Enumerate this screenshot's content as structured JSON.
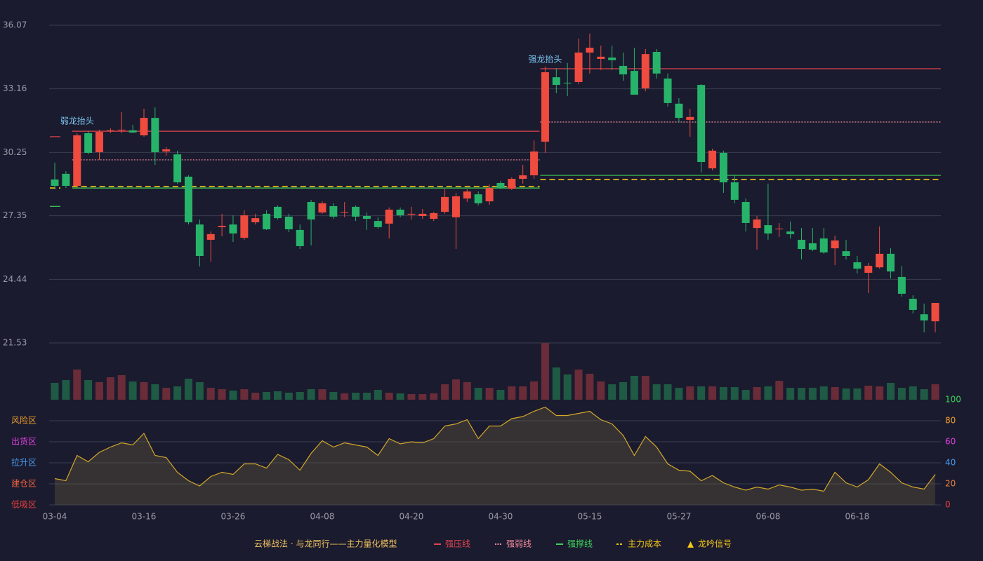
{
  "chart_data": {
    "type": "candlestick",
    "categories": [
      "03-04",
      null,
      null,
      null,
      null,
      null,
      null,
      null,
      "03-16",
      null,
      null,
      null,
      null,
      null,
      null,
      null,
      "03-26",
      null,
      null,
      null,
      null,
      null,
      null,
      null,
      "04-08",
      null,
      null,
      null,
      null,
      null,
      null,
      null,
      "04-20",
      null,
      null,
      null,
      null,
      null,
      null,
      null,
      "04-30",
      null,
      null,
      null,
      null,
      null,
      null,
      null,
      "05-15",
      null,
      null,
      null,
      null,
      null,
      null,
      null,
      "05-27",
      null,
      null,
      null,
      null,
      null,
      null,
      null,
      "06-08",
      null,
      null,
      null,
      null,
      null,
      null,
      null,
      "06-18",
      null,
      null,
      null,
      null,
      null,
      null,
      null
    ],
    "open": [
      29.01,
      29.27,
      28.72,
      31.13,
      30.26,
      31.22,
      31.26,
      31.26,
      31.03,
      31.83,
      30.29,
      30.16,
      29.14,
      26.95,
      26.25,
      26.83,
      26.95,
      26.34,
      27.05,
      27.44,
      27.76,
      27.31,
      26.7,
      27.98,
      27.5,
      27.79,
      27.5,
      27.76,
      27.34,
      27.11,
      26.99,
      27.63,
      27.4,
      27.34,
      27.21,
      27.53,
      27.28,
      28.14,
      28.33,
      28.01,
      28.85,
      28.59,
      29.04,
      29.2,
      30.74,
      33.69,
      33.44,
      33.47,
      34.82,
      34.53,
      34.59,
      34.21,
      33.98,
      33.18,
      34.85,
      33.63,
      32.48,
      31.74,
      33.34,
      29.52,
      30.23,
      28.88,
      27.98,
      26.79,
      26.92,
      26.73,
      26.63,
      26.25,
      26.09,
      26.31,
      25.86,
      25.73,
      25.22,
      24.74,
      24.99,
      25.61,
      24.55,
      23.55,
      22.84,
      22.52
    ],
    "high": [
      29.78,
      29.39,
      31.13,
      31.22,
      31.29,
      31.35,
      32.09,
      31.51,
      32.25,
      32.31,
      30.49,
      30.33,
      29.2,
      27.17,
      26.63,
      27.44,
      27.37,
      27.6,
      27.44,
      27.6,
      27.82,
      27.44,
      26.95,
      28.08,
      28.01,
      27.92,
      27.98,
      27.82,
      27.5,
      27.28,
      27.73,
      27.73,
      27.76,
      27.66,
      27.53,
      28.56,
      28.4,
      28.56,
      28.46,
      28.78,
      28.94,
      29.11,
      29.68,
      30.8,
      34.18,
      34.11,
      34.34,
      35.46,
      35.69,
      35.14,
      35.14,
      34.82,
      35.04,
      34.98,
      34.98,
      33.86,
      32.73,
      32.25,
      33.37,
      30.42,
      30.33,
      29.23,
      28.14,
      27.34,
      28.82,
      27.02,
      27.08,
      26.79,
      26.79,
      26.79,
      26.44,
      26.25,
      25.51,
      25.19,
      26.86,
      25.86,
      25.06,
      23.71,
      23.33,
      23.36
    ],
    "low": [
      28.56,
      28.62,
      28.62,
      30.16,
      29.91,
      31.13,
      31.13,
      31.13,
      30.97,
      29.68,
      30.1,
      28.82,
      26.95,
      25.03,
      25.25,
      26.41,
      26.15,
      26.25,
      26.95,
      26.7,
      27.18,
      26.6,
      25.83,
      25.99,
      27.44,
      27.21,
      27.28,
      27.11,
      26.7,
      26.76,
      26.31,
      27.28,
      27.18,
      27.21,
      27.11,
      27.44,
      25.83,
      27.98,
      27.82,
      27.85,
      28.56,
      28.53,
      28.82,
      29.04,
      30.23,
      32.96,
      32.83,
      33.37,
      33.86,
      34.02,
      34.02,
      33.53,
      32.89,
      33.05,
      33.63,
      32.35,
      31.61,
      30.97,
      29.33,
      29.43,
      28.4,
      27.92,
      26.63,
      25.8,
      26.25,
      26.38,
      26.31,
      25.35,
      25.73,
      25.61,
      25.09,
      25.35,
      24.71,
      23.81,
      24.93,
      24.48,
      23.65,
      22.88,
      22.01,
      22.01
    ],
    "close": [
      28.72,
      28.72,
      31.03,
      30.23,
      31.19,
      31.26,
      31.29,
      31.16,
      31.83,
      30.26,
      30.39,
      28.88,
      27.05,
      25.51,
      26.51,
      26.89,
      26.54,
      27.37,
      27.24,
      26.73,
      27.24,
      26.73,
      25.96,
      27.18,
      27.92,
      27.31,
      27.53,
      27.31,
      27.21,
      26.83,
      27.63,
      27.37,
      27.44,
      27.44,
      27.47,
      28.21,
      28.24,
      28.46,
      27.92,
      28.62,
      28.62,
      29.04,
      29.2,
      30.29,
      33.92,
      33.34,
      33.41,
      34.82,
      35.04,
      34.63,
      34.47,
      33.82,
      32.89,
      34.75,
      33.86,
      32.51,
      31.83,
      31.87,
      29.81,
      30.33,
      28.88,
      28.08,
      27.02,
      27.18,
      26.54,
      26.76,
      26.51,
      25.83,
      25.8,
      25.67,
      26.22,
      25.51,
      24.93,
      25.06,
      25.61,
      24.8,
      23.78,
      23.04,
      22.56,
      23.36
    ],
    "up_color": "#ef4b3f",
    "down_color": "#27b36a",
    "ylim": [
      21.53,
      36.07
    ],
    "yticks": [
      36.07,
      33.16,
      30.25,
      27.35,
      24.44,
      21.53
    ],
    "grid": true,
    "volume": [
      24,
      28,
      43,
      28,
      25,
      32,
      35,
      26,
      25,
      22,
      17,
      19,
      30,
      25,
      17,
      15,
      13,
      15,
      10,
      11,
      12,
      10,
      11,
      15,
      15,
      11,
      9,
      10,
      10,
      14,
      10,
      9,
      8,
      8,
      9,
      22,
      29,
      25,
      17,
      17,
      14,
      19,
      19,
      26,
      81,
      46,
      36,
      43,
      37,
      26,
      22,
      25,
      34,
      34,
      22,
      22,
      17,
      19,
      19,
      19,
      18,
      18,
      14,
      18,
      19,
      27,
      17,
      17,
      17,
      19,
      18,
      16,
      16,
      20,
      19,
      24,
      17,
      19,
      15,
      22
    ],
    "volume_up_color": "#6a2c38",
    "volume_down_color": "#1f5a44",
    "levels": [
      {
        "name": "强压线",
        "color": "#e0434f",
        "style": "solid",
        "segments": [
          {
            "start": 0,
            "end": 0,
            "value": 30.97
          },
          {
            "start": 2,
            "end": 43,
            "value": 31.22
          },
          {
            "start": 44,
            "end": 79,
            "value": 34.08
          }
        ]
      },
      {
        "name": "强弱线",
        "color": "#f08a9a",
        "style": "dotted",
        "segments": [
          {
            "start": 2,
            "end": 43,
            "value": 29.91
          },
          {
            "start": 44,
            "end": 79,
            "value": 31.64
          }
        ]
      },
      {
        "name": "强撑线",
        "color": "#3ecf5a",
        "style": "solid",
        "segments": [
          {
            "start": 0,
            "end": 0,
            "value": 27.78
          },
          {
            "start": 2,
            "end": 43,
            "value": 28.62
          },
          {
            "start": 44,
            "end": 79,
            "value": 29.2
          }
        ]
      },
      {
        "name": "主力成本",
        "color": "#f5c518",
        "style": "dashed",
        "segments": [
          {
            "start": 0,
            "end": 0,
            "value": 28.62
          },
          {
            "start": 2,
            "end": 43,
            "value": 28.69
          },
          {
            "start": 44,
            "end": 79,
            "value": 29.01
          }
        ]
      }
    ],
    "signal": {
      "name": "龙吟信号",
      "color": "#f5c518"
    },
    "legend_title": "云梯战法 · 与龙同行——主力量化模型",
    "annotations": [
      {
        "text": "弱龙抬头",
        "index": 2,
        "value": 31.68
      },
      {
        "text": "强龙抬头",
        "index": 44,
        "value": 34.5
      }
    ],
    "annotation_color": "#7ec8f5",
    "oscillator": {
      "values": [
        25,
        23,
        47,
        41,
        50,
        55,
        59,
        57,
        68,
        47,
        45,
        31,
        23,
        18,
        27,
        31,
        29,
        39,
        39,
        35,
        48,
        43,
        33,
        49,
        61,
        55,
        59,
        57,
        55,
        47,
        63,
        58,
        60,
        59,
        63,
        75,
        77,
        81,
        63,
        75,
        75,
        82,
        84,
        89,
        93,
        85,
        85,
        87,
        89,
        81,
        77,
        66,
        47,
        65,
        55,
        39,
        33,
        32,
        23,
        28,
        21,
        17,
        14,
        17,
        15,
        19,
        17,
        14,
        15,
        13,
        31,
        21,
        17,
        24,
        39,
        31,
        21,
        17,
        15,
        29
      ],
      "color": "#d4a82a",
      "ylim": [
        0,
        100
      ],
      "yticks": [
        100,
        80,
        60,
        40,
        20,
        0
      ],
      "ytick_colors": [
        "#3ecf5a",
        "#f0a030",
        "#e040e0",
        "#4a9cf0",
        "#f08040",
        "#f04040"
      ],
      "zones": [
        {
          "label": "风险区",
          "value": 80,
          "color": "#f0a030"
        },
        {
          "label": "出货区",
          "value": 60,
          "color": "#e040e0"
        },
        {
          "label": "拉升区",
          "value": 40,
          "color": "#4a9cf0"
        },
        {
          "label": "建仓区",
          "value": 20,
          "color": "#f06040"
        },
        {
          "label": "低吸区",
          "value": 0,
          "color": "#f04040"
        }
      ]
    }
  }
}
